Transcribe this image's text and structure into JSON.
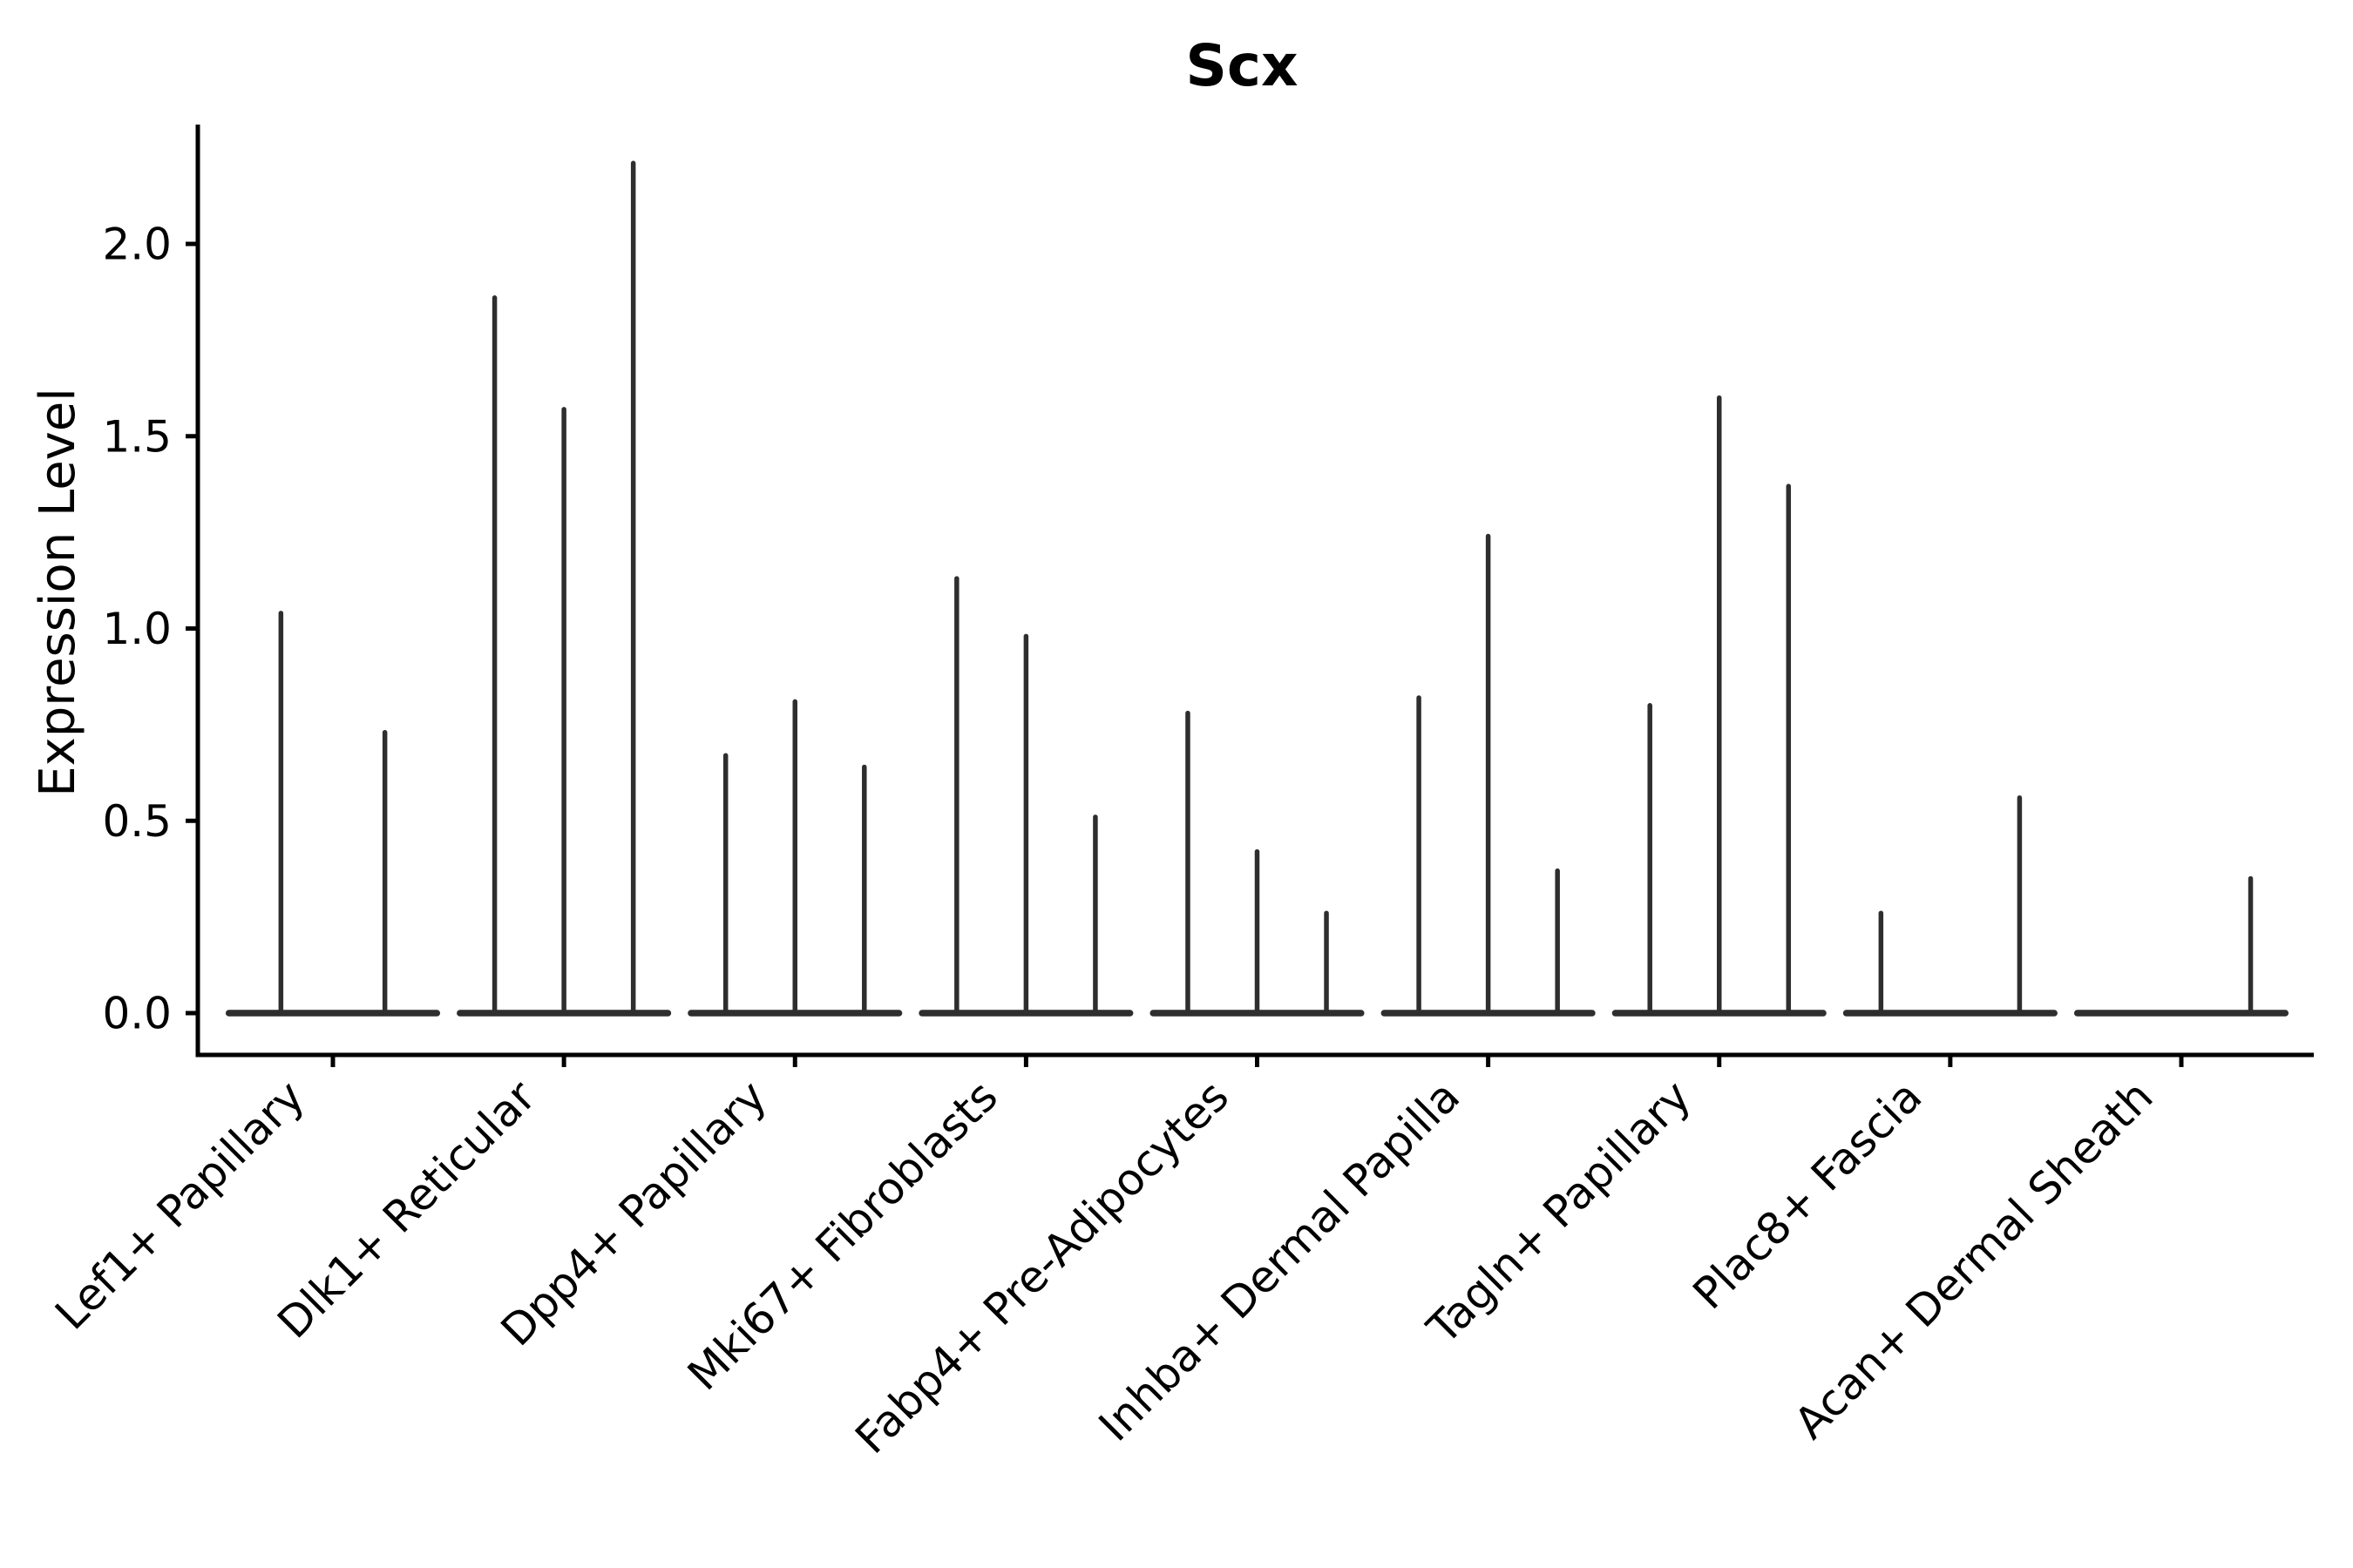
{
  "figure": {
    "title": "Scx",
    "background_color": "#ffffff"
  },
  "chart_data": {
    "type": "violin",
    "title": "Scx",
    "xlabel": "",
    "ylabel": "Expression Level",
    "grid": false,
    "legend": "none",
    "ylim": [
      -0.11,
      2.31
    ],
    "yticks": [
      0.0,
      0.5,
      1.0,
      1.5,
      2.0
    ],
    "ytick_labels": [
      "0.0",
      "0.5",
      "1.0",
      "1.5",
      "2.0"
    ],
    "categories": [
      "Lef1+ Papillary",
      "Dlk1+ Reticular",
      "Dpp4+ Papillary",
      "Mki67+ Fibroblasts",
      "Fabp4+ Pre-Adipocytes",
      "Inhba+ Dermal Papilla",
      "Tagln+ Papillary",
      "Plac8+ Fascia",
      "Acan+ Dermal Sheath"
    ],
    "description": "Violin plot of Scx expression per cluster; each cluster shows up to 3 needle-thin violins (flat base at 0 with a thin spike to the max expression value).",
    "groups": [
      {
        "label": "Lef1+ Papillary",
        "n_violins": 2,
        "spike_maxima": [
          1.04,
          0.73
        ]
      },
      {
        "label": "Dlk1+ Reticular",
        "n_violins": 3,
        "spike_maxima": [
          1.86,
          1.57,
          2.21
        ]
      },
      {
        "label": "Dpp4+ Papillary",
        "n_violins": 3,
        "spike_maxima": [
          0.67,
          0.81,
          0.64
        ]
      },
      {
        "label": "Mki67+ Fibroblasts",
        "n_violins": 3,
        "spike_maxima": [
          1.13,
          0.98,
          0.51
        ]
      },
      {
        "label": "Fabp4+ Pre-Adipocytes",
        "n_violins": 3,
        "spike_maxima": [
          0.78,
          0.42,
          0.26
        ]
      },
      {
        "label": "Inhba+ Dermal Papilla",
        "n_violins": 3,
        "spike_maxima": [
          0.82,
          1.24,
          0.37
        ]
      },
      {
        "label": "Tagln+ Papillary",
        "n_violins": 3,
        "spike_maxima": [
          0.8,
          1.6,
          1.37
        ]
      },
      {
        "label": "Plac8+ Fascia",
        "n_violins": 3,
        "spike_maxima": [
          0.26,
          0.0,
          0.56
        ]
      },
      {
        "label": "Acan+ Dermal Sheath",
        "n_violins": 3,
        "spike_maxima": [
          0.0,
          0.0,
          0.35
        ]
      }
    ],
    "colors": {
      "violin_line": "#2e2e2e",
      "spine": "#000000",
      "text": "#000000"
    }
  }
}
